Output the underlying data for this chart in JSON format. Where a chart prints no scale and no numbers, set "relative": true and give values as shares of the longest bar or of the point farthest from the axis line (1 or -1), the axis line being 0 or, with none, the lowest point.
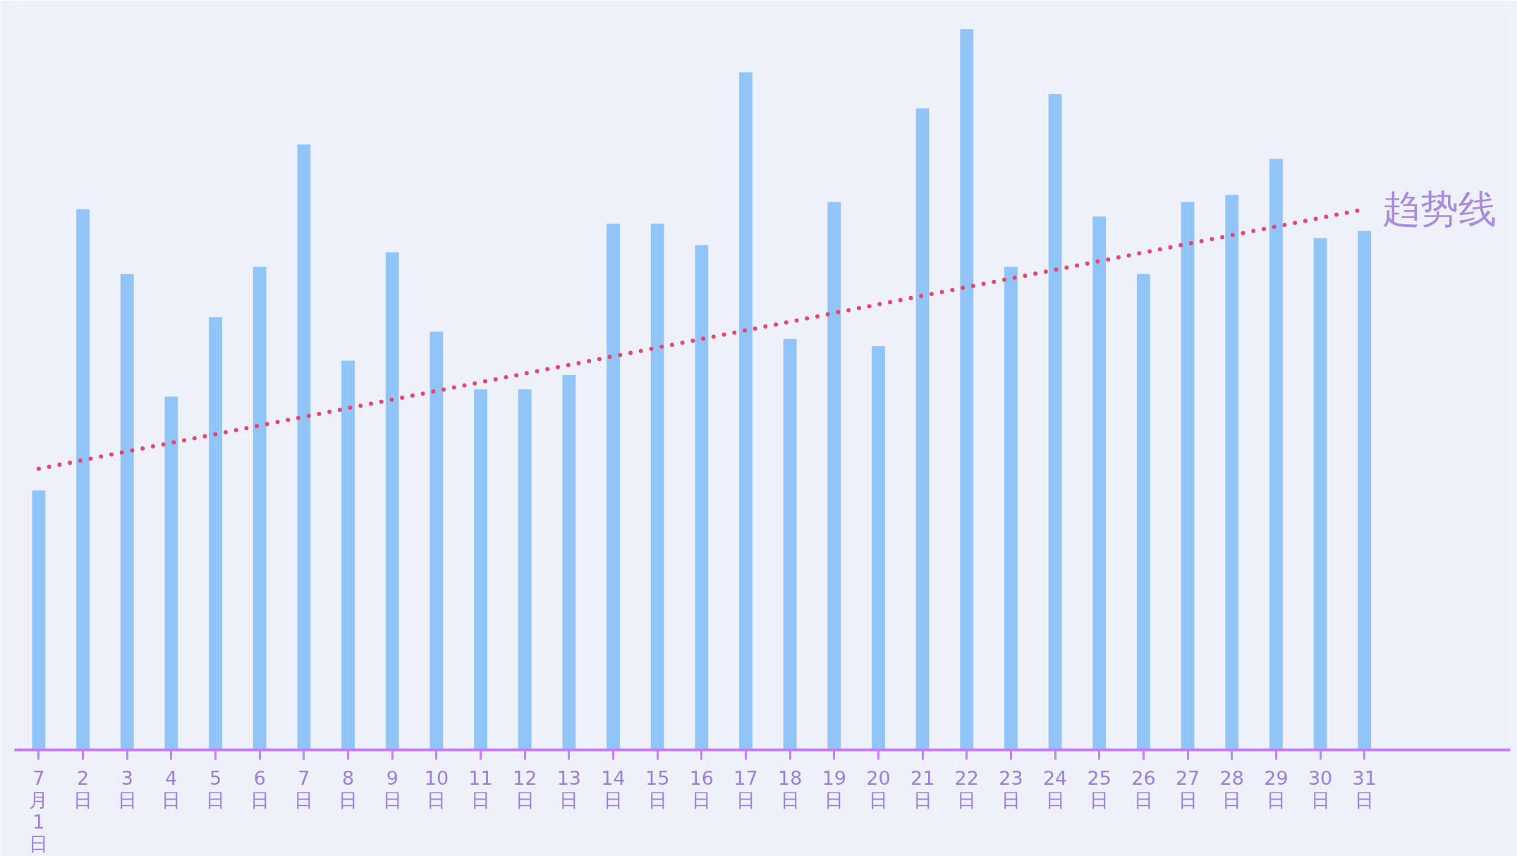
{
  "chart_data": {
    "type": "bar",
    "relative": true,
    "grid": false,
    "legend": false,
    "categories": [
      "7月1日",
      "2日",
      "3日",
      "4日",
      "5日",
      "6日",
      "7日",
      "8日",
      "9日",
      "10日",
      "11日",
      "12日",
      "13日",
      "14日",
      "15日",
      "16日",
      "17日",
      "18日",
      "19日",
      "20日",
      "21日",
      "22日",
      "23日",
      "24日",
      "25日",
      "26日",
      "27日",
      "28日",
      "29日",
      "30日",
      "31日"
    ],
    "series": [
      {
        "color": "#80bdf7",
        "values": [
          0.36,
          0.75,
          0.66,
          0.49,
          0.6,
          0.67,
          0.84,
          0.54,
          0.69,
          0.58,
          0.5,
          0.5,
          0.52,
          0.73,
          0.73,
          0.7,
          0.94,
          0.57,
          0.76,
          0.56,
          0.89,
          1,
          0.67,
          0.91,
          0.74,
          0.66,
          0.76,
          0.77,
          0.82,
          0.71,
          0.72
        ]
      },
      {
        "type": "line",
        "name": "趋势线",
        "color": "#e8456f",
        "line_style": "dotted",
        "x": [
          "7月1日",
          "31日"
        ],
        "values": [
          0.39,
          0.75
        ]
      }
    ]
  }
}
